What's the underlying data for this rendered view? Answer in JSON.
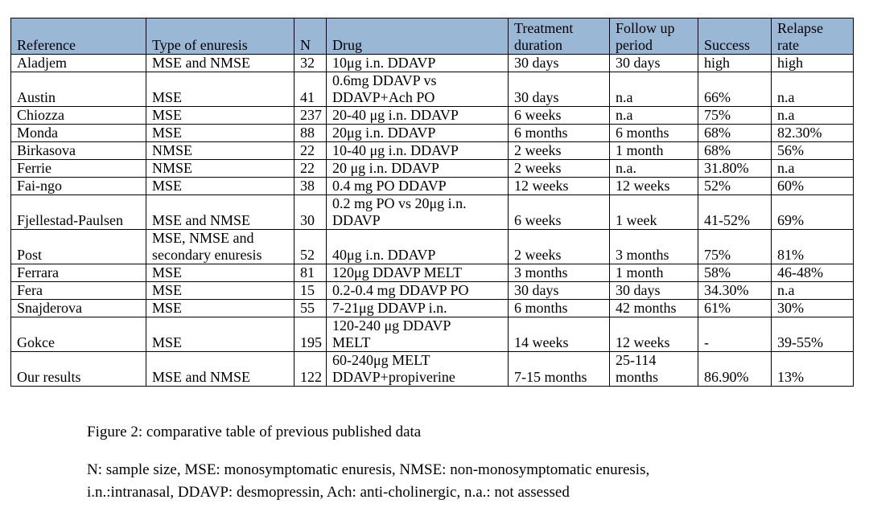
{
  "table": {
    "headers": [
      [
        "Reference"
      ],
      [
        "Type of enuresis"
      ],
      [
        "N"
      ],
      [
        "Drug"
      ],
      [
        "Treatment",
        "duration"
      ],
      [
        "Follow up",
        "period"
      ],
      [
        "Success"
      ],
      [
        "Relapse",
        "rate"
      ]
    ],
    "rows": [
      [
        [
          "Aladjem"
        ],
        [
          "MSE and NMSE"
        ],
        [
          "32"
        ],
        [
          "10μg i.n. DDAVP"
        ],
        [
          "30 days"
        ],
        [
          "30 days"
        ],
        [
          "high"
        ],
        [
          "high"
        ]
      ],
      [
        [
          "Austin"
        ],
        [
          "MSE"
        ],
        [
          "41"
        ],
        [
          "0.6mg DDAVP vs",
          "DDAVP+Ach PO"
        ],
        [
          "30 days"
        ],
        [
          "n.a"
        ],
        [
          "66%"
        ],
        [
          "n.a"
        ]
      ],
      [
        [
          "Chiozza"
        ],
        [
          "MSE"
        ],
        [
          "237"
        ],
        [
          "20-40 μg i.n. DDAVP"
        ],
        [
          "6 weeks"
        ],
        [
          "n.a"
        ],
        [
          "75%"
        ],
        [
          "n.a"
        ]
      ],
      [
        [
          "Monda"
        ],
        [
          "MSE"
        ],
        [
          "88"
        ],
        [
          "20μg i.n. DDAVP"
        ],
        [
          "6 months"
        ],
        [
          "6 months"
        ],
        [
          "68%"
        ],
        [
          "82.30%"
        ]
      ],
      [
        [
          "Birkasova"
        ],
        [
          "NMSE"
        ],
        [
          "22"
        ],
        [
          "10-40 μg i.n. DDAVP"
        ],
        [
          "2 weeks"
        ],
        [
          "1 month"
        ],
        [
          "68%"
        ],
        [
          "56%"
        ]
      ],
      [
        [
          "Ferrie"
        ],
        [
          "NMSE"
        ],
        [
          "22"
        ],
        [
          "20 μg i.n. DDAVP"
        ],
        [
          "2 weeks"
        ],
        [
          "n.a."
        ],
        [
          "31.80%"
        ],
        [
          "n.a"
        ]
      ],
      [
        [
          "Fai-ngo"
        ],
        [
          "MSE"
        ],
        [
          "38"
        ],
        [
          "0.4 mg PO DDAVP"
        ],
        [
          "12 weeks"
        ],
        [
          "12 weeks"
        ],
        [
          "52%"
        ],
        [
          "60%"
        ]
      ],
      [
        [
          "Fjellestad-Paulsen"
        ],
        [
          "MSE and NMSE"
        ],
        [
          "30"
        ],
        [
          "0.2 mg PO vs 20μg i.n.",
          "DDAVP"
        ],
        [
          "6 weeks"
        ],
        [
          "1 week"
        ],
        [
          "41-52%"
        ],
        [
          "69%"
        ]
      ],
      [
        [
          "Post"
        ],
        [
          "MSE, NMSE and",
          "secondary enuresis"
        ],
        [
          "52"
        ],
        [
          "40μg i.n. DDAVP"
        ],
        [
          "2 weeks"
        ],
        [
          "3 months"
        ],
        [
          "75%"
        ],
        [
          "81%"
        ]
      ],
      [
        [
          "Ferrara"
        ],
        [
          "MSE"
        ],
        [
          "81"
        ],
        [
          " 120μg DDAVP MELT"
        ],
        [
          "3 months"
        ],
        [
          "1 month"
        ],
        [
          "58%"
        ],
        [
          "46-48%"
        ]
      ],
      [
        [
          "Fera"
        ],
        [
          "MSE"
        ],
        [
          "15"
        ],
        [
          "0.2-0.4 mg DDAVP PO"
        ],
        [
          "30 days"
        ],
        [
          "30 days"
        ],
        [
          "34.30%"
        ],
        [
          "n.a"
        ]
      ],
      [
        [
          "Snajderova"
        ],
        [
          "MSE"
        ],
        [
          "55"
        ],
        [
          "7-21μg DDAVP i.n."
        ],
        [
          "6 months"
        ],
        [
          "42 months"
        ],
        [
          "61%"
        ],
        [
          "30%"
        ]
      ],
      [
        [
          "Gokce"
        ],
        [
          "MSE"
        ],
        [
          "195"
        ],
        [
          "120-240 μg DDAVP",
          "MELT"
        ],
        [
          "14 weeks"
        ],
        [
          "12 weeks"
        ],
        [
          "-"
        ],
        [
          "39-55%"
        ]
      ],
      [
        [
          "Our results"
        ],
        [
          "MSE and NMSE"
        ],
        [
          "122"
        ],
        [
          "60-240μg MELT",
          "DDAVP+propiverine"
        ],
        [
          "7-15 months"
        ],
        [
          "25-114",
          "months"
        ],
        [
          "86.90%"
        ],
        [
          "13%"
        ]
      ]
    ]
  },
  "caption": "Figure 2: comparative table of previous published data",
  "footnote": [
    "N: sample size, MSE: monosymptomatic enuresis, NMSE: non-monosymptomatic enuresis,",
    "i.n.:intranasal, DDAVP: desmopressin, Ach: anti-cholinergic, n.a.: not assessed"
  ],
  "colors": {
    "header_fill": "#9bb7d6",
    "border": "#000000",
    "text": "#000000"
  }
}
